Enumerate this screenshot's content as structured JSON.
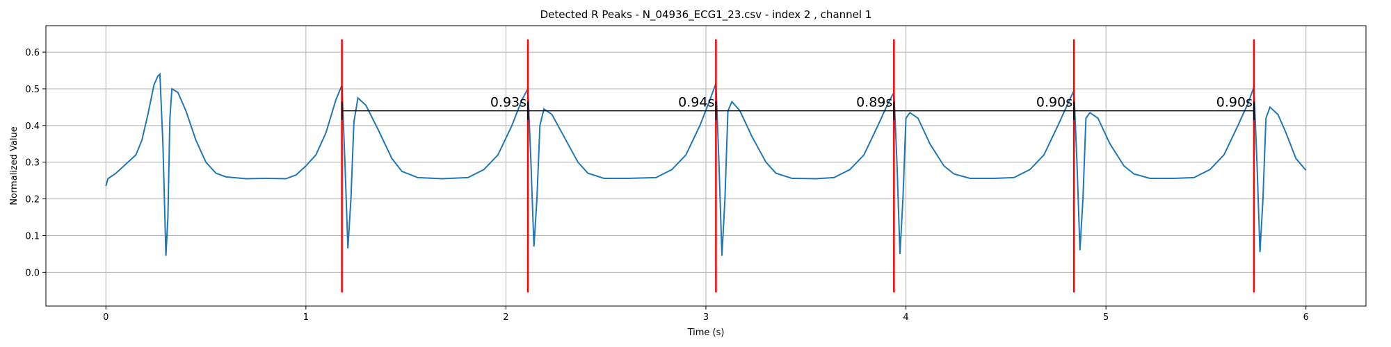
{
  "chart_data": {
    "type": "line",
    "title": "Detected R Peaks - N_04936_ECG1_23.csv - index 2 , channel 1",
    "xlabel": "Time (s)",
    "ylabel": "Normalized Value",
    "xlim": [
      -0.3,
      6.3
    ],
    "ylim": [
      -0.092,
      0.672
    ],
    "xticks": [
      0,
      1,
      2,
      3,
      4,
      5,
      6
    ],
    "yticks": [
      {
        "value": 0,
        "label": "0.0"
      },
      0.1,
      0.2,
      0.3,
      0.4,
      0.5,
      0.6
    ],
    "grid": true,
    "x": [
      0,
      0.01,
      0.05,
      0.1,
      0.15,
      0.18,
      0.21,
      0.24,
      0.26,
      0.27,
      0.285,
      0.3,
      0.31,
      0.32,
      0.33,
      0.36,
      0.4,
      0.45,
      0.5,
      0.55,
      0.6,
      0.7,
      0.8,
      0.9,
      0.95,
      1.0,
      1.05,
      1.1,
      1.15,
      1.18,
      1.195,
      1.21,
      1.225,
      1.24,
      1.26,
      1.3,
      1.36,
      1.43,
      1.48,
      1.56,
      1.68,
      1.81,
      1.89,
      1.96,
      2.03,
      2.08,
      2.11,
      2.125,
      2.14,
      2.155,
      2.17,
      2.19,
      2.23,
      2.29,
      2.36,
      2.41,
      2.49,
      2.61,
      2.75,
      2.83,
      2.9,
      2.97,
      3.02,
      3.05,
      3.065,
      3.08,
      3.095,
      3.11,
      3.13,
      3.17,
      3.23,
      3.3,
      3.35,
      3.43,
      3.55,
      3.64,
      3.72,
      3.79,
      3.86,
      3.91,
      3.94,
      3.955,
      3.97,
      3.985,
      4.0,
      4.02,
      4.06,
      4.12,
      4.19,
      4.24,
      4.32,
      4.44,
      4.54,
      4.62,
      4.69,
      4.76,
      4.81,
      4.84,
      4.855,
      4.87,
      4.885,
      4.9,
      4.92,
      4.96,
      5.02,
      5.09,
      5.14,
      5.22,
      5.34,
      5.44,
      5.52,
      5.59,
      5.66,
      5.71,
      5.74,
      5.755,
      5.77,
      5.785,
      5.8,
      5.82,
      5.86,
      5.9,
      5.95,
      6.0
    ],
    "series": [
      {
        "color": "#1f77b4",
        "values": [
          0.235,
          0.255,
          0.27,
          0.295,
          0.32,
          0.36,
          0.43,
          0.51,
          0.535,
          0.54,
          0.35,
          0.045,
          0.15,
          0.42,
          0.5,
          0.49,
          0.44,
          0.36,
          0.3,
          0.27,
          0.26,
          0.255,
          0.256,
          0.255,
          0.265,
          0.29,
          0.32,
          0.38,
          0.47,
          0.51,
          0.3,
          0.065,
          0.2,
          0.41,
          0.475,
          0.455,
          0.39,
          0.31,
          0.275,
          0.258,
          0.255,
          0.258,
          0.28,
          0.32,
          0.4,
          0.47,
          0.5,
          0.3,
          0.07,
          0.2,
          0.4,
          0.445,
          0.43,
          0.37,
          0.3,
          0.27,
          0.256,
          0.256,
          0.258,
          0.28,
          0.32,
          0.4,
          0.47,
          0.515,
          0.3,
          0.045,
          0.2,
          0.44,
          0.465,
          0.44,
          0.37,
          0.3,
          0.27,
          0.256,
          0.255,
          0.258,
          0.28,
          0.32,
          0.4,
          0.46,
          0.49,
          0.3,
          0.05,
          0.2,
          0.42,
          0.435,
          0.42,
          0.35,
          0.29,
          0.268,
          0.256,
          0.256,
          0.258,
          0.28,
          0.32,
          0.4,
          0.46,
          0.495,
          0.3,
          0.06,
          0.2,
          0.42,
          0.435,
          0.42,
          0.35,
          0.29,
          0.268,
          0.256,
          0.256,
          0.258,
          0.28,
          0.32,
          0.4,
          0.46,
          0.505,
          0.3,
          0.055,
          0.2,
          0.42,
          0.45,
          0.43,
          0.38,
          0.31,
          0.278
        ]
      }
    ],
    "peaks": [
      1.18,
      2.11,
      3.05,
      3.94,
      4.84,
      5.74
    ],
    "peak_color": "#ff0000",
    "peak_range": [
      -0.055,
      0.635
    ],
    "intervals": {
      "y": 0.44,
      "tick_range": [
        0.415,
        0.465
      ],
      "values": [
        0.93,
        0.94,
        0.89,
        0.9,
        0.9
      ],
      "value_labels": [
        "0.93s",
        "0.94s",
        "0.89s",
        "0.90s",
        "0.90s"
      ]
    }
  }
}
